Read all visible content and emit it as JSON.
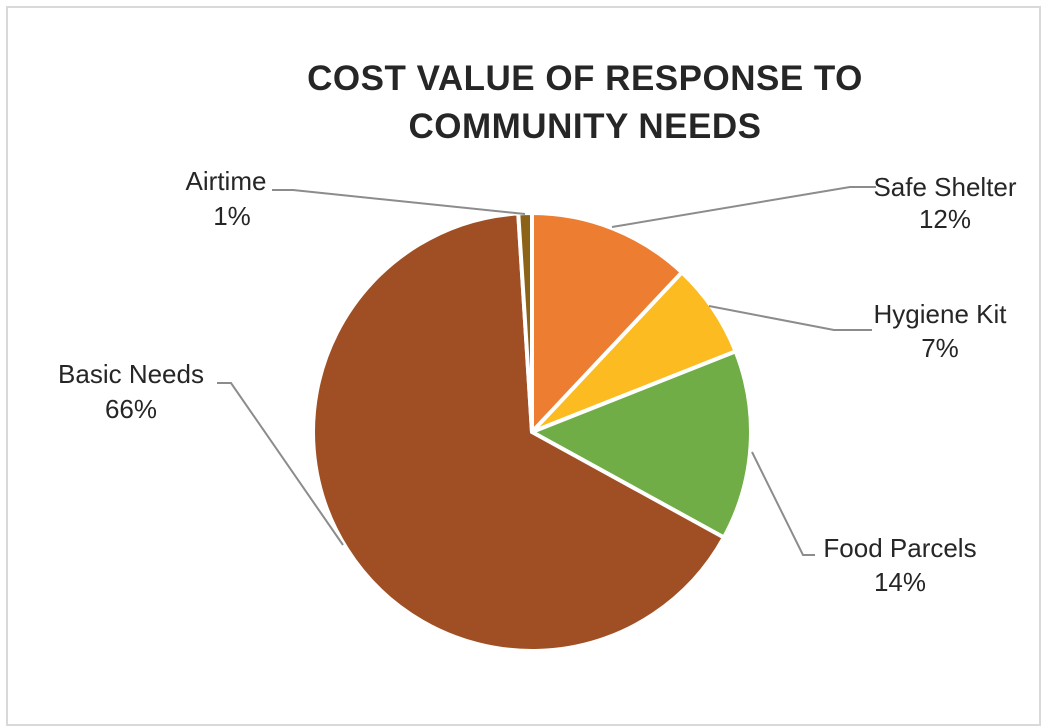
{
  "chart_data": {
    "type": "pie",
    "title_lines": [
      "COST VALUE OF RESPONSE TO",
      "COMMUNITY NEEDS"
    ],
    "slices": [
      {
        "name": "Safe Shelter",
        "value": 12,
        "label": "12%",
        "color": "#ED7D31"
      },
      {
        "name": "Hygiene Kit",
        "value": 7,
        "label": "7%",
        "color": "#FBBB21"
      },
      {
        "name": "Food Parcels",
        "value": 14,
        "label": "14%",
        "color": "#70AD47"
      },
      {
        "name": "Basic Needs",
        "value": 66,
        "label": "66%",
        "color": "#A04F24"
      },
      {
        "name": "Airtime",
        "value": 1,
        "label": "1%",
        "color": "#8C6219"
      }
    ],
    "start_angle_deg": 0,
    "direction": "clockwise",
    "legend": "none",
    "data_labels": "outside with leader lines"
  }
}
